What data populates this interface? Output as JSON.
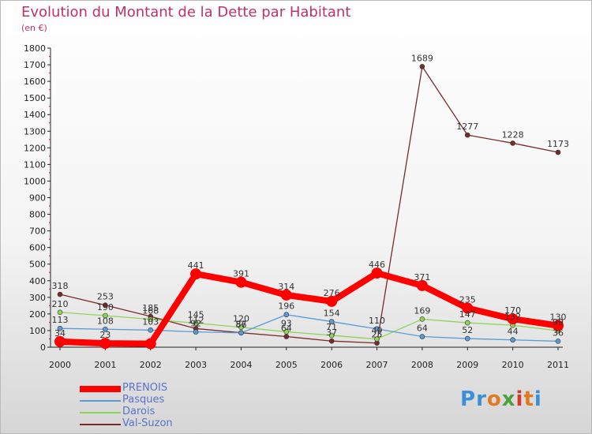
{
  "header": {
    "title": "Evolution du Montant de la Dette par Habitant",
    "subtitle": "(en €)"
  },
  "logo": {
    "letters": [
      {
        "ch": "P",
        "color": "#3a8fd6"
      },
      {
        "ch": "r",
        "color": "#3a8fd6"
      },
      {
        "ch": "o",
        "color": "#e07b23"
      },
      {
        "ch": "x",
        "color": "#4aa13a"
      },
      {
        "ch": "i",
        "color": "#d3382e"
      },
      {
        "ch": "t",
        "color": "#e07b23"
      },
      {
        "ch": "i",
        "color": "#3a8fd6"
      }
    ]
  },
  "chart_data": {
    "type": "line",
    "title": "Evolution du Montant de la Dette par Habitant",
    "ylabel": "(en €)",
    "x": [
      "2000",
      "2001",
      "2002",
      "2003",
      "2004",
      "2005",
      "2006",
      "2007",
      "2008",
      "2009",
      "2010",
      "2011"
    ],
    "ylim": [
      0,
      1800
    ],
    "yticks": [
      0,
      100,
      200,
      300,
      400,
      500,
      600,
      700,
      800,
      900,
      1000,
      1100,
      1200,
      1300,
      1400,
      1500,
      1600,
      1700,
      1800
    ],
    "grid": false,
    "legend_position": "bottom-left",
    "series": [
      {
        "name": "PRENOIS",
        "color": "#ff0000",
        "values": [
          34,
          23,
          21,
          441,
          391,
          314,
          276,
          446,
          371,
          235,
          170,
          130
        ]
      },
      {
        "name": "Pasques",
        "color": "#5b9bd5",
        "values": [
          113,
          108,
          103,
          92,
          86,
          196,
          154,
          110,
          64,
          52,
          44,
          36
        ]
      },
      {
        "name": "Darois",
        "color": "#8fd45a",
        "values": [
          210,
          190,
          168,
          145,
          120,
          93,
          71,
          49,
          169,
          147,
          132,
          99
        ]
      },
      {
        "name": "Val-Suzon",
        "color": "#7b2a2a",
        "values": [
          318,
          253,
          185,
          112,
          87,
          64,
          37,
          25,
          1689,
          1277,
          1228,
          1173
        ]
      }
    ],
    "labels": [
      {
        "text": "318",
        "x": 0,
        "y": 318
      },
      {
        "text": "210",
        "x": 0,
        "y": 210
      },
      {
        "text": "113",
        "x": 0,
        "y": 113
      },
      {
        "text": "34",
        "x": 0,
        "y": 34
      },
      {
        "text": "253",
        "x": 1,
        "y": 253
      },
      {
        "text": "190",
        "x": 1,
        "y": 190
      },
      {
        "text": "108",
        "x": 1,
        "y": 108
      },
      {
        "text": "23",
        "x": 1,
        "y": 23
      },
      {
        "text": "185",
        "x": 2,
        "y": 185
      },
      {
        "text": "168",
        "x": 2,
        "y": 168
      },
      {
        "text": "103",
        "x": 2,
        "y": 103
      },
      {
        "text": "441",
        "x": 3,
        "y": 441
      },
      {
        "text": "145",
        "x": 3,
        "y": 145
      },
      {
        "text": "112",
        "x": 3,
        "y": 112
      },
      {
        "text": "92",
        "x": 3,
        "y": 92
      },
      {
        "text": "391",
        "x": 4,
        "y": 391
      },
      {
        "text": "120",
        "x": 4,
        "y": 120
      },
      {
        "text": "87",
        "x": 4,
        "y": 87
      },
      {
        "text": "86",
        "x": 4,
        "y": 86
      },
      {
        "text": "314",
        "x": 5,
        "y": 314
      },
      {
        "text": "196",
        "x": 5,
        "y": 196
      },
      {
        "text": "93",
        "x": 5,
        "y": 93
      },
      {
        "text": "64",
        "x": 5,
        "y": 64
      },
      {
        "text": "276",
        "x": 6,
        "y": 276
      },
      {
        "text": "154",
        "x": 6,
        "y": 154
      },
      {
        "text": "71",
        "x": 6,
        "y": 71
      },
      {
        "text": "37",
        "x": 6,
        "y": 37
      },
      {
        "text": "446",
        "x": 7,
        "y": 446
      },
      {
        "text": "110",
        "x": 7,
        "y": 110
      },
      {
        "text": "49",
        "x": 7,
        "y": 49
      },
      {
        "text": "25",
        "x": 7,
        "y": 25
      },
      {
        "text": "1689",
        "x": 8,
        "y": 1689
      },
      {
        "text": "371",
        "x": 8,
        "y": 371
      },
      {
        "text": "169",
        "x": 8,
        "y": 169
      },
      {
        "text": "64",
        "x": 8,
        "y": 64
      },
      {
        "text": "1277",
        "x": 9,
        "y": 1277
      },
      {
        "text": "235",
        "x": 9,
        "y": 235
      },
      {
        "text": "147",
        "x": 9,
        "y": 147
      },
      {
        "text": "52",
        "x": 9,
        "y": 52
      },
      {
        "text": "1228",
        "x": 10,
        "y": 1228
      },
      {
        "text": "170",
        "x": 10,
        "y": 170
      },
      {
        "text": "132",
        "x": 10,
        "y": 132
      },
      {
        "text": "44",
        "x": 10,
        "y": 44
      },
      {
        "text": "1173",
        "x": 11,
        "y": 1173
      },
      {
        "text": "130",
        "x": 11,
        "y": 130
      },
      {
        "text": "99",
        "x": 11,
        "y": 99
      },
      {
        "text": "36",
        "x": 11,
        "y": 36
      }
    ]
  }
}
